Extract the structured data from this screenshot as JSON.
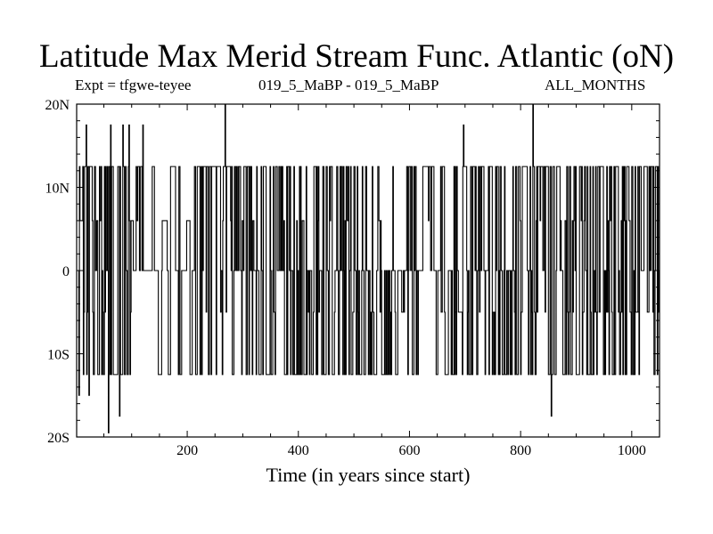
{
  "chart_data": {
    "type": "line",
    "title": "Latitude Max Merid Stream Func. Atlantic (oN)",
    "subtitle_left": "Expt = tfgwe-teyee",
    "subtitle_center": "019_5_MaBP - 019_5_MaBP",
    "subtitle_right": "ALL_MONTHS",
    "xlabel": "Time (in years since start)",
    "ylabel": "",
    "xlim": [
      1,
      1050
    ],
    "ylim": [
      -20,
      20
    ],
    "x_ticks": [
      200,
      400,
      600,
      800,
      1000
    ],
    "x_tick_labels": [
      "200",
      "400",
      "600",
      "800",
      "1000"
    ],
    "y_ticks": [
      -20,
      -10,
      0,
      10,
      20
    ],
    "y_tick_labels": [
      "20S",
      "10S",
      "0",
      "10N",
      "20N"
    ],
    "grid": false,
    "series": [
      {
        "levels": [
          12.5,
          6,
          0,
          -5,
          -12.5
        ],
        "segments": [
          {
            "x": [
              1,
              60
            ],
            "density": 0.55,
            "weights": [
              0.35,
              0.12,
              0.1,
              0.1,
              0.33
            ]
          },
          {
            "x": [
              60,
              110
            ],
            "density": 0.45,
            "weights": [
              0.2,
              0.1,
              0.1,
              0.1,
              0.5
            ]
          },
          {
            "x": [
              110,
              215
            ],
            "density": 0.3,
            "weights": [
              0.3,
              0.05,
              0.45,
              0.03,
              0.17
            ]
          },
          {
            "x": [
              215,
              320
            ],
            "density": 0.8,
            "weights": [
              0.55,
              0.05,
              0.15,
              0.03,
              0.22
            ]
          },
          {
            "x": [
              320,
              480
            ],
            "density": 0.7,
            "weights": [
              0.35,
              0.05,
              0.2,
              0.05,
              0.35
            ]
          },
          {
            "x": [
              480,
              580
            ],
            "density": 0.8,
            "weights": [
              0.25,
              0.03,
              0.22,
              0.08,
              0.42
            ]
          },
          {
            "x": [
              580,
              680
            ],
            "density": 0.45,
            "weights": [
              0.3,
              0.03,
              0.27,
              0.1,
              0.3
            ]
          },
          {
            "x": [
              680,
              800
            ],
            "density": 0.75,
            "weights": [
              0.35,
              0.03,
              0.2,
              0.12,
              0.3
            ]
          },
          {
            "x": [
              800,
              880
            ],
            "density": 0.6,
            "weights": [
              0.35,
              0.05,
              0.2,
              0.1,
              0.3
            ]
          },
          {
            "x": [
              880,
              1050
            ],
            "density": 0.8,
            "weights": [
              0.4,
              0.07,
              0.13,
              0.2,
              0.2
            ]
          }
        ],
        "spikes": [
          {
            "x": 5,
            "y": -15
          },
          {
            "x": 18,
            "y": 17.5
          },
          {
            "x": 23,
            "y": -15
          },
          {
            "x": 58,
            "y": -19.5
          },
          {
            "x": 62,
            "y": 17.5
          },
          {
            "x": 78,
            "y": -17.5
          },
          {
            "x": 84,
            "y": 17.5
          },
          {
            "x": 95,
            "y": 17.5
          },
          {
            "x": 120,
            "y": 17.5
          },
          {
            "x": 268,
            "y": 20
          },
          {
            "x": 697,
            "y": 17.5
          },
          {
            "x": 822,
            "y": 20
          },
          {
            "x": 855,
            "y": -17.5
          },
          {
            "x": 930,
            "y": 12.5
          }
        ]
      }
    ]
  }
}
